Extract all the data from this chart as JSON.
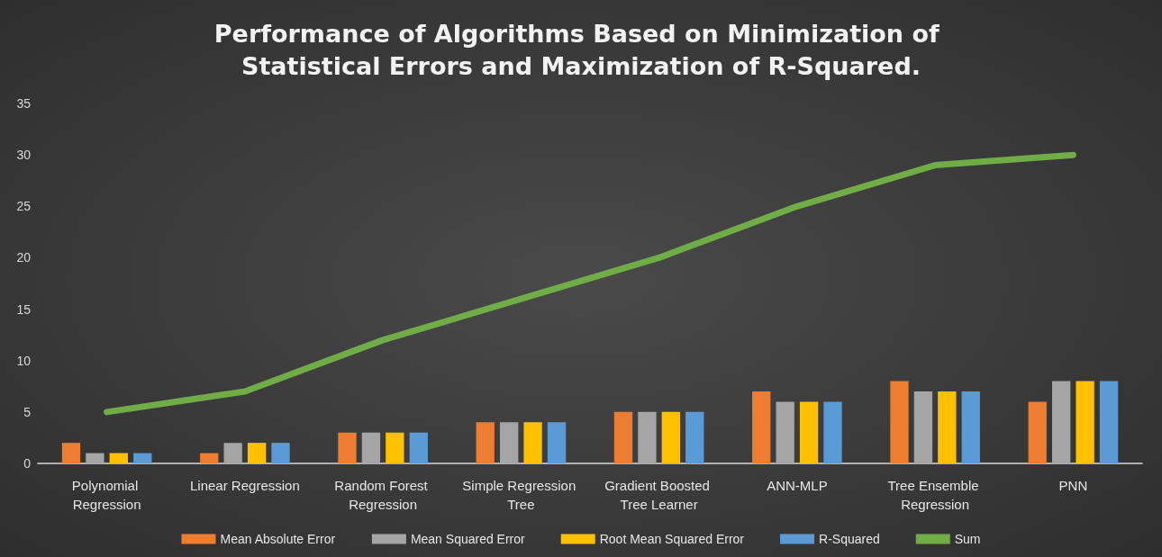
{
  "chart_data": {
    "type": "bar",
    "title": "Performance of Algorithms Based on Minimization of Statistical Errors and Maximization of R-Squared.",
    "categories": [
      "Polynomial Regression",
      "Linear Regression",
      "Random Forest Regression",
      "Simple Regression Tree",
      "Gradient Boosted Tree Learner",
      "ANN-MLP",
      "Tree Ensemble Regression",
      "PNN"
    ],
    "series": [
      {
        "name": "Mean Absolute Error",
        "color": "#ed7d31",
        "values": [
          2,
          1,
          3,
          4,
          5,
          7,
          8,
          6
        ]
      },
      {
        "name": "Mean Squared Error",
        "color": "#a5a5a5",
        "values": [
          1,
          2,
          3,
          4,
          5,
          6,
          7,
          8
        ]
      },
      {
        "name": "Root Mean Squared Error",
        "color": "#ffc000",
        "values": [
          1,
          2,
          3,
          4,
          5,
          6,
          7,
          8
        ]
      },
      {
        "name": "R-Squared",
        "color": "#5b9bd5",
        "values": [
          1,
          2,
          3,
          4,
          5,
          6,
          7,
          8
        ]
      },
      {
        "name": "Sum",
        "type": "line",
        "color": "#70ad47",
        "values": [
          5,
          7,
          12,
          16,
          20,
          25,
          29,
          30
        ],
        "marker": "none"
      }
    ],
    "ylim": [
      0,
      35
    ],
    "yticks": [
      0,
      5,
      10,
      15,
      20,
      25,
      30,
      35
    ],
    "grid": false,
    "legend": "bottom"
  }
}
